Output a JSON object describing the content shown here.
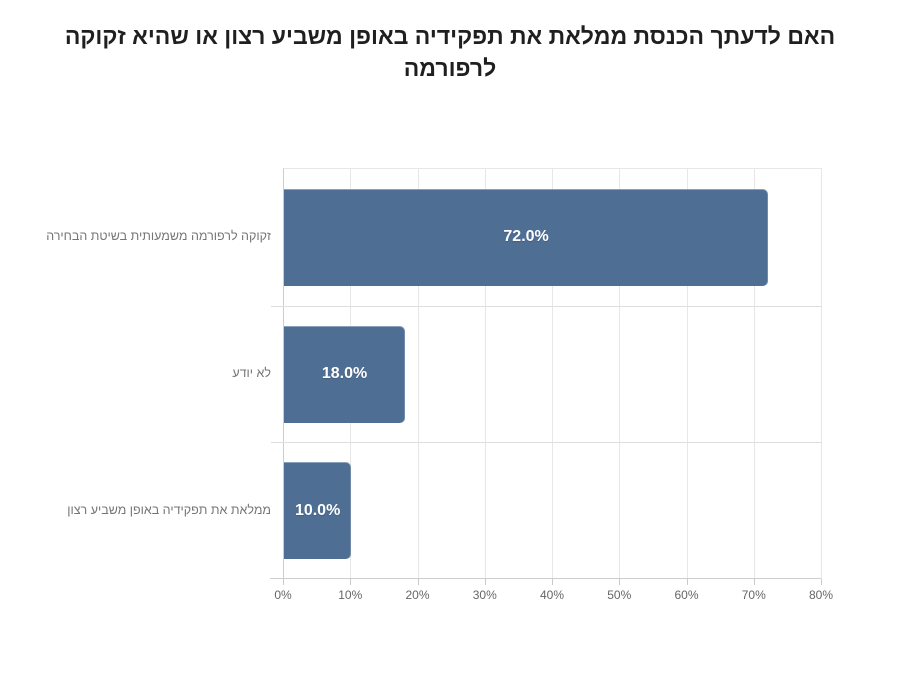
{
  "title": "האם לדעתך הכנסת ממלאת את תפקידיה באופן משביע רצון או שהיא זקוקה לרפורמה",
  "chart_data": {
    "type": "bar",
    "orientation": "horizontal",
    "title": "האם לדעתך הכנסת ממלאת את תפקידיה באופן משביע רצון או שהיא זקוקה לרפורמה",
    "categories": [
      "זקוקה לרפורמה משמעותית בשיטת הבחירה",
      "לא יודע",
      "ממלאת את תפקידיה באופן משביע רצון"
    ],
    "values": [
      72.0,
      18.0,
      10.0
    ],
    "value_labels": [
      "72.0%",
      "18.0%",
      "10.0%"
    ],
    "xlabel": "",
    "ylabel": "",
    "xlim": [
      0,
      80
    ],
    "x_ticks": [
      "0%",
      "10%",
      "20%",
      "30%",
      "40%",
      "50%",
      "60%",
      "70%",
      "80%"
    ],
    "grid": true,
    "legend": "none",
    "bar_color": "#4e6e94",
    "value_label_color": "#ffffff",
    "axis_line_color": "#cdcdcd",
    "gridline_color": "#e7e7e7",
    "category_label_color": "#757575",
    "tick_label_color": "#666666"
  }
}
